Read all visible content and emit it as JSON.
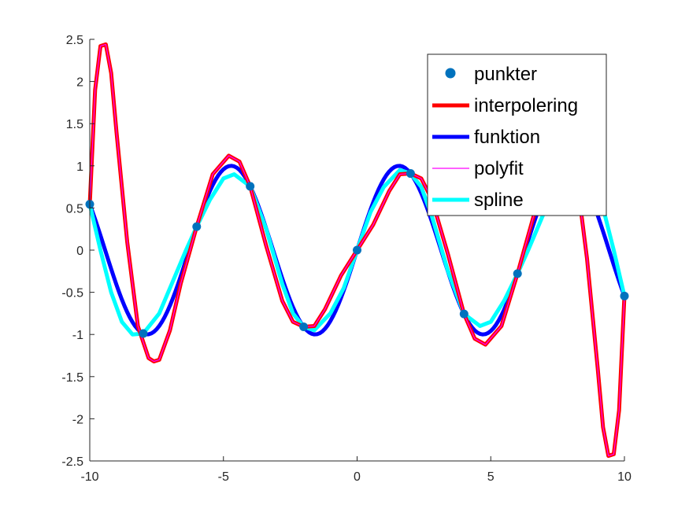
{
  "chart_data": {
    "type": "line",
    "title": "",
    "xlabel": "",
    "ylabel": "",
    "xlim": [
      -10,
      10
    ],
    "ylim": [
      -2.5,
      2.5
    ],
    "x_ticks": [
      -10,
      -5,
      0,
      5,
      10
    ],
    "y_ticks": [
      -2.5,
      -2,
      -1.5,
      -1,
      -0.5,
      0,
      0.5,
      1,
      1.5,
      2,
      2.5
    ],
    "legend_position": "top-right",
    "grid": false,
    "series": [
      {
        "name": "punkter",
        "kind": "markers",
        "color": "#0072BD",
        "x": [
          -10,
          -8,
          -6,
          -4,
          -2,
          0,
          2,
          4,
          6,
          8,
          10
        ],
        "y": [
          0.544,
          -0.989,
          0.279,
          0.757,
          -0.909,
          0,
          0.909,
          -0.757,
          -0.279,
          0.989,
          -0.544
        ]
      },
      {
        "name": "interpolering",
        "kind": "line",
        "color": "#FF0000",
        "x": [
          -10,
          -9.8,
          -9.6,
          -9.4,
          -9.2,
          -9,
          -8.6,
          -8.2,
          -7.8,
          -7.6,
          -7.4,
          -7,
          -6.6,
          -6,
          -5.4,
          -4.8,
          -4.4,
          -4,
          -3.4,
          -2.8,
          -2.4,
          -2,
          -1.6,
          -1.2,
          -0.6,
          0,
          0.6,
          1.2,
          1.6,
          2,
          2.4,
          2.8,
          3.4,
          4,
          4.4,
          4.8,
          5.4,
          6,
          6.6,
          7,
          7.4,
          7.6,
          7.8,
          8.2,
          8.6,
          9,
          9.2,
          9.4,
          9.6,
          9.8,
          10
        ],
        "y": [
          0.544,
          1.9,
          2.42,
          2.44,
          2.1,
          1.4,
          0.1,
          -0.9,
          -1.28,
          -1.32,
          -1.3,
          -0.95,
          -0.4,
          0.279,
          0.9,
          1.12,
          1.05,
          0.757,
          0.05,
          -0.6,
          -0.85,
          -0.909,
          -0.9,
          -0.7,
          -0.3,
          0,
          0.3,
          0.7,
          0.9,
          0.909,
          0.85,
          0.6,
          -0.05,
          -0.757,
          -1.05,
          -1.12,
          -0.9,
          -0.279,
          0.4,
          0.95,
          1.3,
          1.32,
          1.28,
          0.9,
          -0.1,
          -1.4,
          -2.1,
          -2.44,
          -2.42,
          -1.9,
          -0.544
        ]
      },
      {
        "name": "funktion",
        "kind": "line",
        "color": "#0000FF",
        "expression": "sin(x)"
      },
      {
        "name": "polyfit",
        "kind": "line",
        "color": "#FF00FF",
        "x": [
          -10,
          -9.8,
          -9.6,
          -9.4,
          -9.2,
          -9,
          -8.6,
          -8.2,
          -7.8,
          -7.6,
          -7.4,
          -7,
          -6.6,
          -6,
          -5.4,
          -4.8,
          -4.4,
          -4,
          -3.4,
          -2.8,
          -2.4,
          -2,
          -1.6,
          -1.2,
          -0.6,
          0,
          0.6,
          1.2,
          1.6,
          2,
          2.4,
          2.8,
          3.4,
          4,
          4.4,
          4.8,
          5.4,
          6,
          6.6,
          7,
          7.4,
          7.6,
          7.8,
          8.2,
          8.6,
          9,
          9.2,
          9.4,
          9.6,
          9.8,
          10
        ],
        "y": [
          0.544,
          1.9,
          2.42,
          2.44,
          2.1,
          1.4,
          0.1,
          -0.9,
          -1.28,
          -1.32,
          -1.3,
          -0.95,
          -0.4,
          0.279,
          0.9,
          1.12,
          1.05,
          0.757,
          0.05,
          -0.6,
          -0.85,
          -0.909,
          -0.9,
          -0.7,
          -0.3,
          0,
          0.3,
          0.7,
          0.9,
          0.909,
          0.85,
          0.6,
          -0.05,
          -0.757,
          -1.05,
          -1.12,
          -0.9,
          -0.279,
          0.4,
          0.95,
          1.3,
          1.32,
          1.28,
          0.9,
          -0.1,
          -1.4,
          -2.1,
          -2.44,
          -2.42,
          -1.9,
          -0.544
        ]
      },
      {
        "name": "spline",
        "kind": "line",
        "color": "#00FFFF",
        "x": [
          -10,
          -9.6,
          -9.2,
          -8.8,
          -8.4,
          -8,
          -7.4,
          -6.8,
          -6.4,
          -6,
          -5.5,
          -5,
          -4.6,
          -4,
          -3.4,
          -2.8,
          -2.4,
          -2,
          -1.6,
          -1,
          -0.5,
          0,
          0.5,
          1,
          1.6,
          2,
          2.4,
          2.8,
          3.4,
          4,
          4.6,
          5,
          5.5,
          6,
          6.4,
          6.8,
          7.4,
          8,
          8.4,
          8.8,
          9.2,
          9.6,
          10
        ],
        "y": [
          0.544,
          0.0,
          -0.5,
          -0.85,
          -1.0,
          -0.989,
          -0.75,
          -0.3,
          0.0,
          0.279,
          0.6,
          0.85,
          0.9,
          0.757,
          0.25,
          -0.4,
          -0.75,
          -0.909,
          -0.95,
          -0.75,
          -0.45,
          0,
          0.45,
          0.75,
          0.95,
          0.909,
          0.75,
          0.4,
          -0.25,
          -0.757,
          -0.9,
          -0.85,
          -0.6,
          -0.279,
          0.0,
          0.3,
          0.75,
          0.989,
          1.0,
          0.85,
          0.5,
          0.0,
          -0.544
        ]
      }
    ]
  }
}
